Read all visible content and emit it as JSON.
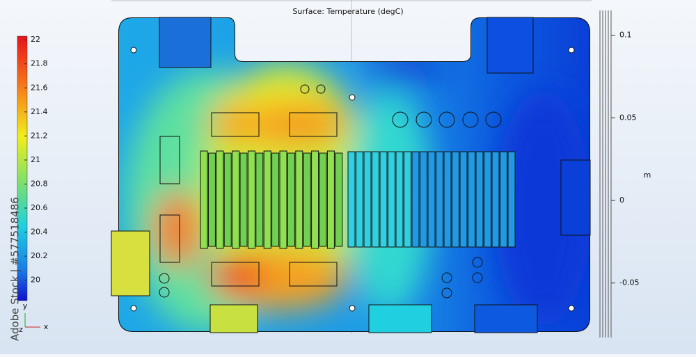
{
  "title": "Surface: Temperature (degC)",
  "colorbar": {
    "range": [
      19.83,
      22.03
    ],
    "ticks": [
      20,
      20.2,
      20.4,
      20.6,
      20.8,
      21,
      21.2,
      21.4,
      21.6,
      21.8,
      22
    ]
  },
  "axis": {
    "label": "m",
    "range": [
      -0.083,
      0.115
    ],
    "ticks": [
      0.1,
      0.05,
      0,
      -0.05
    ]
  },
  "triad": {
    "x": "x",
    "y": "y",
    "z": "z"
  },
  "watermark": "Adobe Stock | #577518486"
}
